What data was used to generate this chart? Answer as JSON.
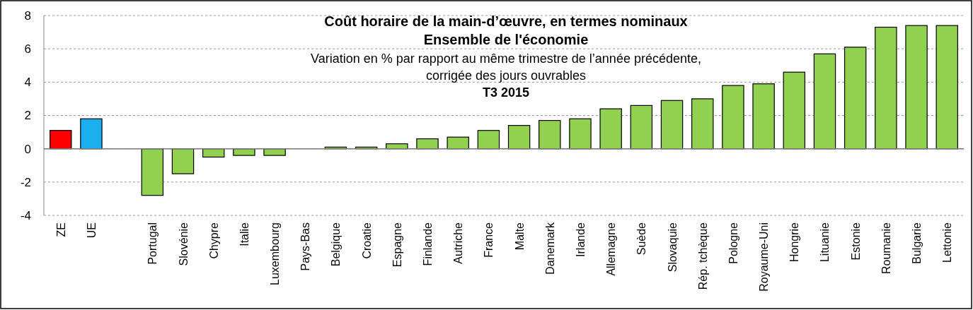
{
  "chart_data": {
    "type": "bar",
    "title": "Coût horaire de la main-d’œuvre, en termes nominaux\nEnsemble de l'économie",
    "subtitle": "Variation en % par rapport au même trimestre de l’année précédente,\ncorrigée des jours ouvrables",
    "annotations": [
      "T3 2015"
    ],
    "categories": [
      "ZE",
      "UE",
      null,
      "Portugal",
      "Slovénie",
      "Chypre",
      "Italie",
      "Luxembourg",
      "Pays-Bas",
      "Belgique",
      "Croatie",
      "Espagne",
      "Finlande",
      "Autriche",
      "France",
      "Malte",
      "Danemark",
      "Irlande",
      "Allemagne",
      "Suède",
      "Slovaquie",
      "Rép. tchèque",
      "Pologne",
      "Royaume-Uni",
      "Hongrie",
      "Lituanie",
      "Estonie",
      "Roumanie",
      "Bulgarie",
      "Lettonie"
    ],
    "values": [
      1.1,
      1.8,
      null,
      -2.8,
      -1.5,
      -0.5,
      -0.4,
      -0.4,
      0,
      0.1,
      0.1,
      0.3,
      0.6,
      0.7,
      1.1,
      1.4,
      1.7,
      1.8,
      2.4,
      2.6,
      2.9,
      3.0,
      3.8,
      3.9,
      4.6,
      5.7,
      6.1,
      7.3,
      7.4,
      7.4
    ],
    "colors": [
      "#ff0000",
      "#1ab0f0",
      null,
      "#92d050",
      "#92d050",
      "#92d050",
      "#92d050",
      "#92d050",
      "#92d050",
      "#92d050",
      "#92d050",
      "#92d050",
      "#92d050",
      "#92d050",
      "#92d050",
      "#92d050",
      "#92d050",
      "#92d050",
      "#92d050",
      "#92d050",
      "#92d050",
      "#92d050",
      "#92d050",
      "#92d050",
      "#92d050",
      "#92d050",
      "#92d050",
      "#92d050",
      "#92d050",
      "#92d050"
    ],
    "ylim": [
      -4,
      8
    ],
    "yticks": [
      -4,
      -2,
      0,
      2,
      4,
      6,
      8
    ],
    "grid": "y"
  }
}
